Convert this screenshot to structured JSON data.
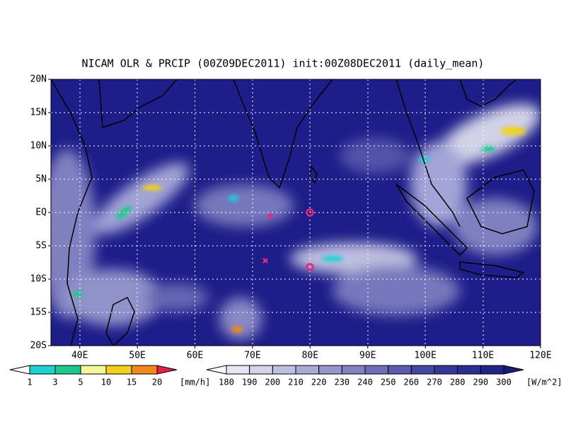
{
  "title": "NICAM OLR & PRCIP (00Z09DEC2011) init:00Z08DEC2011 (daily_mean)",
  "lat_labels": [
    "20N",
    "15N",
    "10N",
    "5N",
    "EQ",
    "5S",
    "10S",
    "15S",
    "20S"
  ],
  "lon_labels": [
    "40E",
    "50E",
    "60E",
    "70E",
    "80E",
    "90E",
    "100E",
    "110E",
    "120E"
  ],
  "precip_colorbar": {
    "labels": [
      "1",
      "3",
      "5",
      "10",
      "15",
      "20"
    ],
    "unit": "[mm/h]",
    "colors": [
      "#ffffff",
      "#1ed2d2",
      "#1ec88c",
      "#f5f59b",
      "#f0d21e",
      "#f0871e",
      "#e61e46"
    ]
  },
  "olr_colorbar": {
    "labels": [
      "180",
      "190",
      "200",
      "210",
      "220",
      "230",
      "240",
      "250",
      "260",
      "270",
      "280",
      "290",
      "300"
    ],
    "unit": "[W/m^2]",
    "colors": [
      "#ffffff",
      "#e6e6f2",
      "#d2d2eb",
      "#bebee1",
      "#aaaad7",
      "#9696cd",
      "#8282c3",
      "#6e6eb9",
      "#5a5aaf",
      "#4646a5",
      "#37379b",
      "#2d2d91",
      "#232387",
      "#1a1a7d"
    ]
  }
}
